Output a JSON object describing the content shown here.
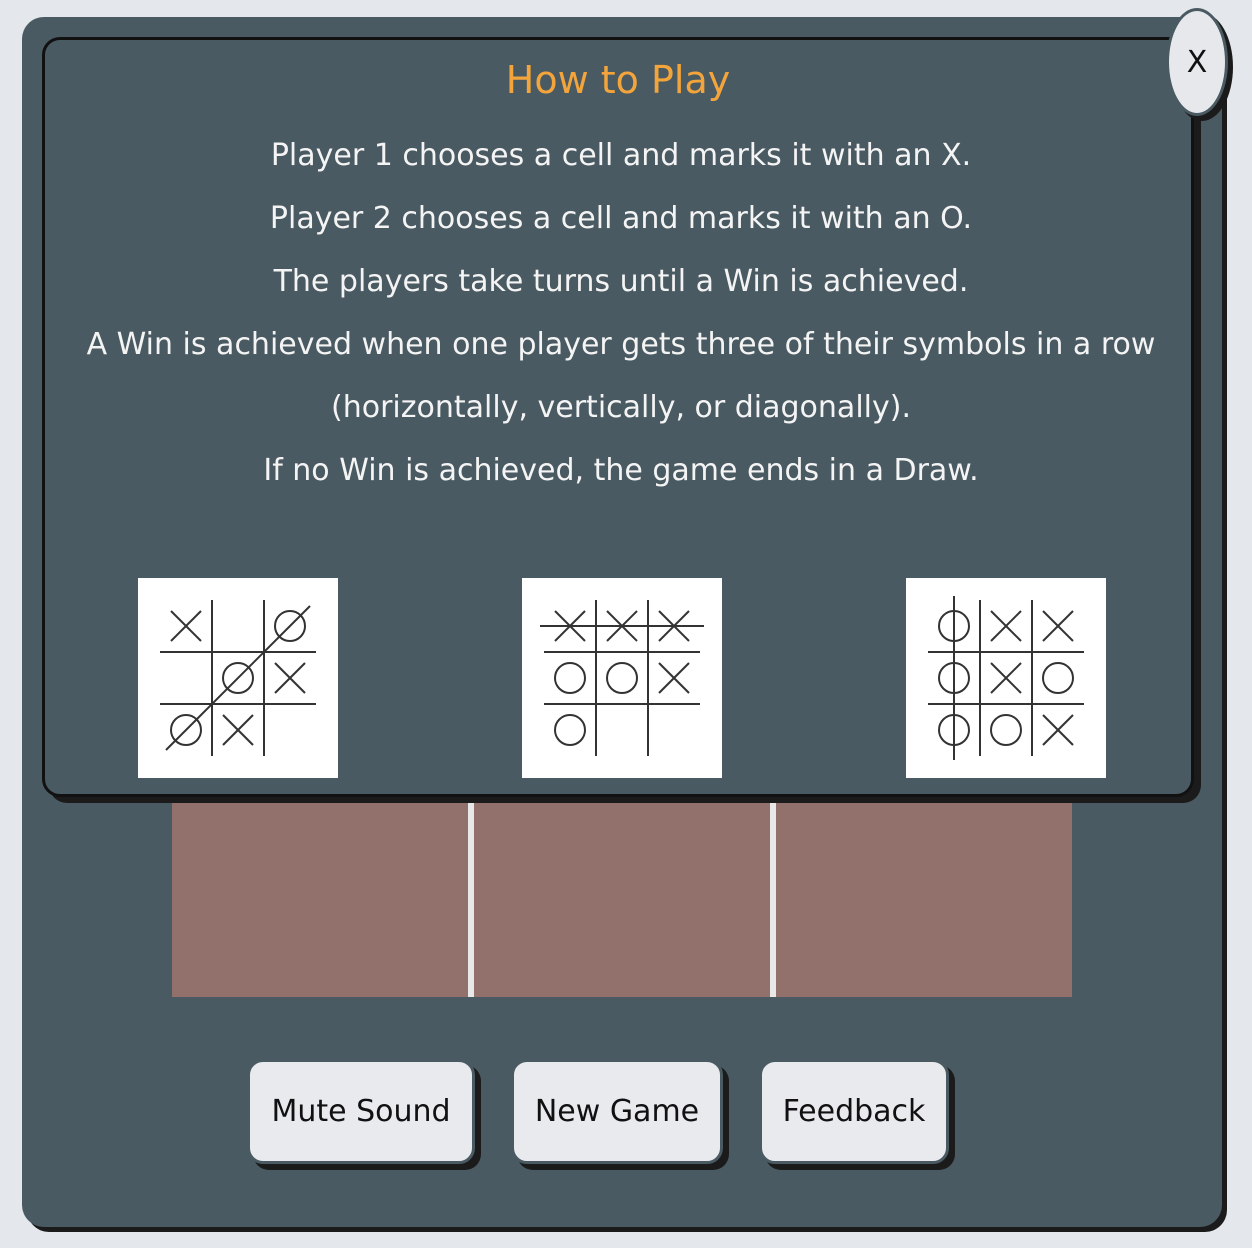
{
  "modal": {
    "title": "How to Play",
    "close_label": "X",
    "rules": [
      "Player 1 chooses a cell and marks it with an X.",
      "Player 2 chooses a cell and marks it with an O.",
      "The players take turns until a Win is achieved.",
      "A Win is achieved when one player gets three of their symbols in a row",
      "(horizontally, vertically, or diagonally).",
      "If no Win is achieved, the game ends in a Draw."
    ],
    "examples": [
      {
        "marks": [
          "X",
          "",
          "O",
          "",
          "O",
          "X",
          "O",
          "X",
          ""
        ],
        "win": "diagonal"
      },
      {
        "marks": [
          "X",
          "X",
          "X",
          "O",
          "O",
          "X",
          "O",
          "",
          ""
        ],
        "win": "row"
      },
      {
        "marks": [
          "O",
          "X",
          "X",
          "O",
          "X",
          "O",
          "O",
          "O",
          "X"
        ],
        "win": "column"
      }
    ]
  },
  "board": {
    "cells": [
      "",
      "",
      ""
    ]
  },
  "controls": {
    "mute_label": "Mute Sound",
    "new_game_label": "New Game",
    "feedback_label": "Feedback"
  },
  "colors": {
    "panel": "#4a5a62",
    "cell": "#92706b",
    "title": "#f3a53c",
    "button": "#e8eaee"
  }
}
